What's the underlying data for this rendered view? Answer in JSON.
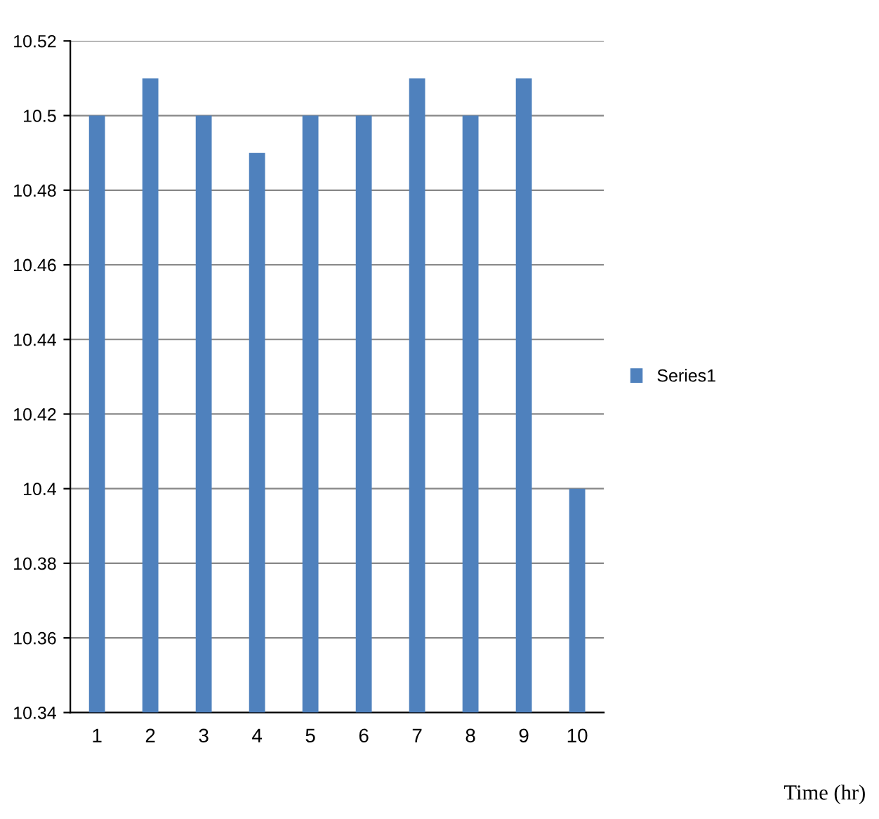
{
  "chart_data": {
    "type": "bar",
    "annotations": [
      "Time (hr)"
    ],
    "categories": [
      "1",
      "2",
      "3",
      "4",
      "5",
      "6",
      "7",
      "8",
      "9",
      "10"
    ],
    "series": [
      {
        "name": "Series1",
        "color": "#4f81bd",
        "values": [
          10.5,
          10.51,
          10.5,
          10.49,
          10.5,
          10.5,
          10.51,
          10.5,
          10.51,
          10.4
        ]
      }
    ],
    "ylim": [
      10.34,
      10.52
    ],
    "yticks": [
      10.34,
      10.36,
      10.38,
      10.4,
      10.42,
      10.44,
      10.46,
      10.48,
      10.5,
      10.52
    ],
    "grid": "y",
    "legend": "right"
  }
}
